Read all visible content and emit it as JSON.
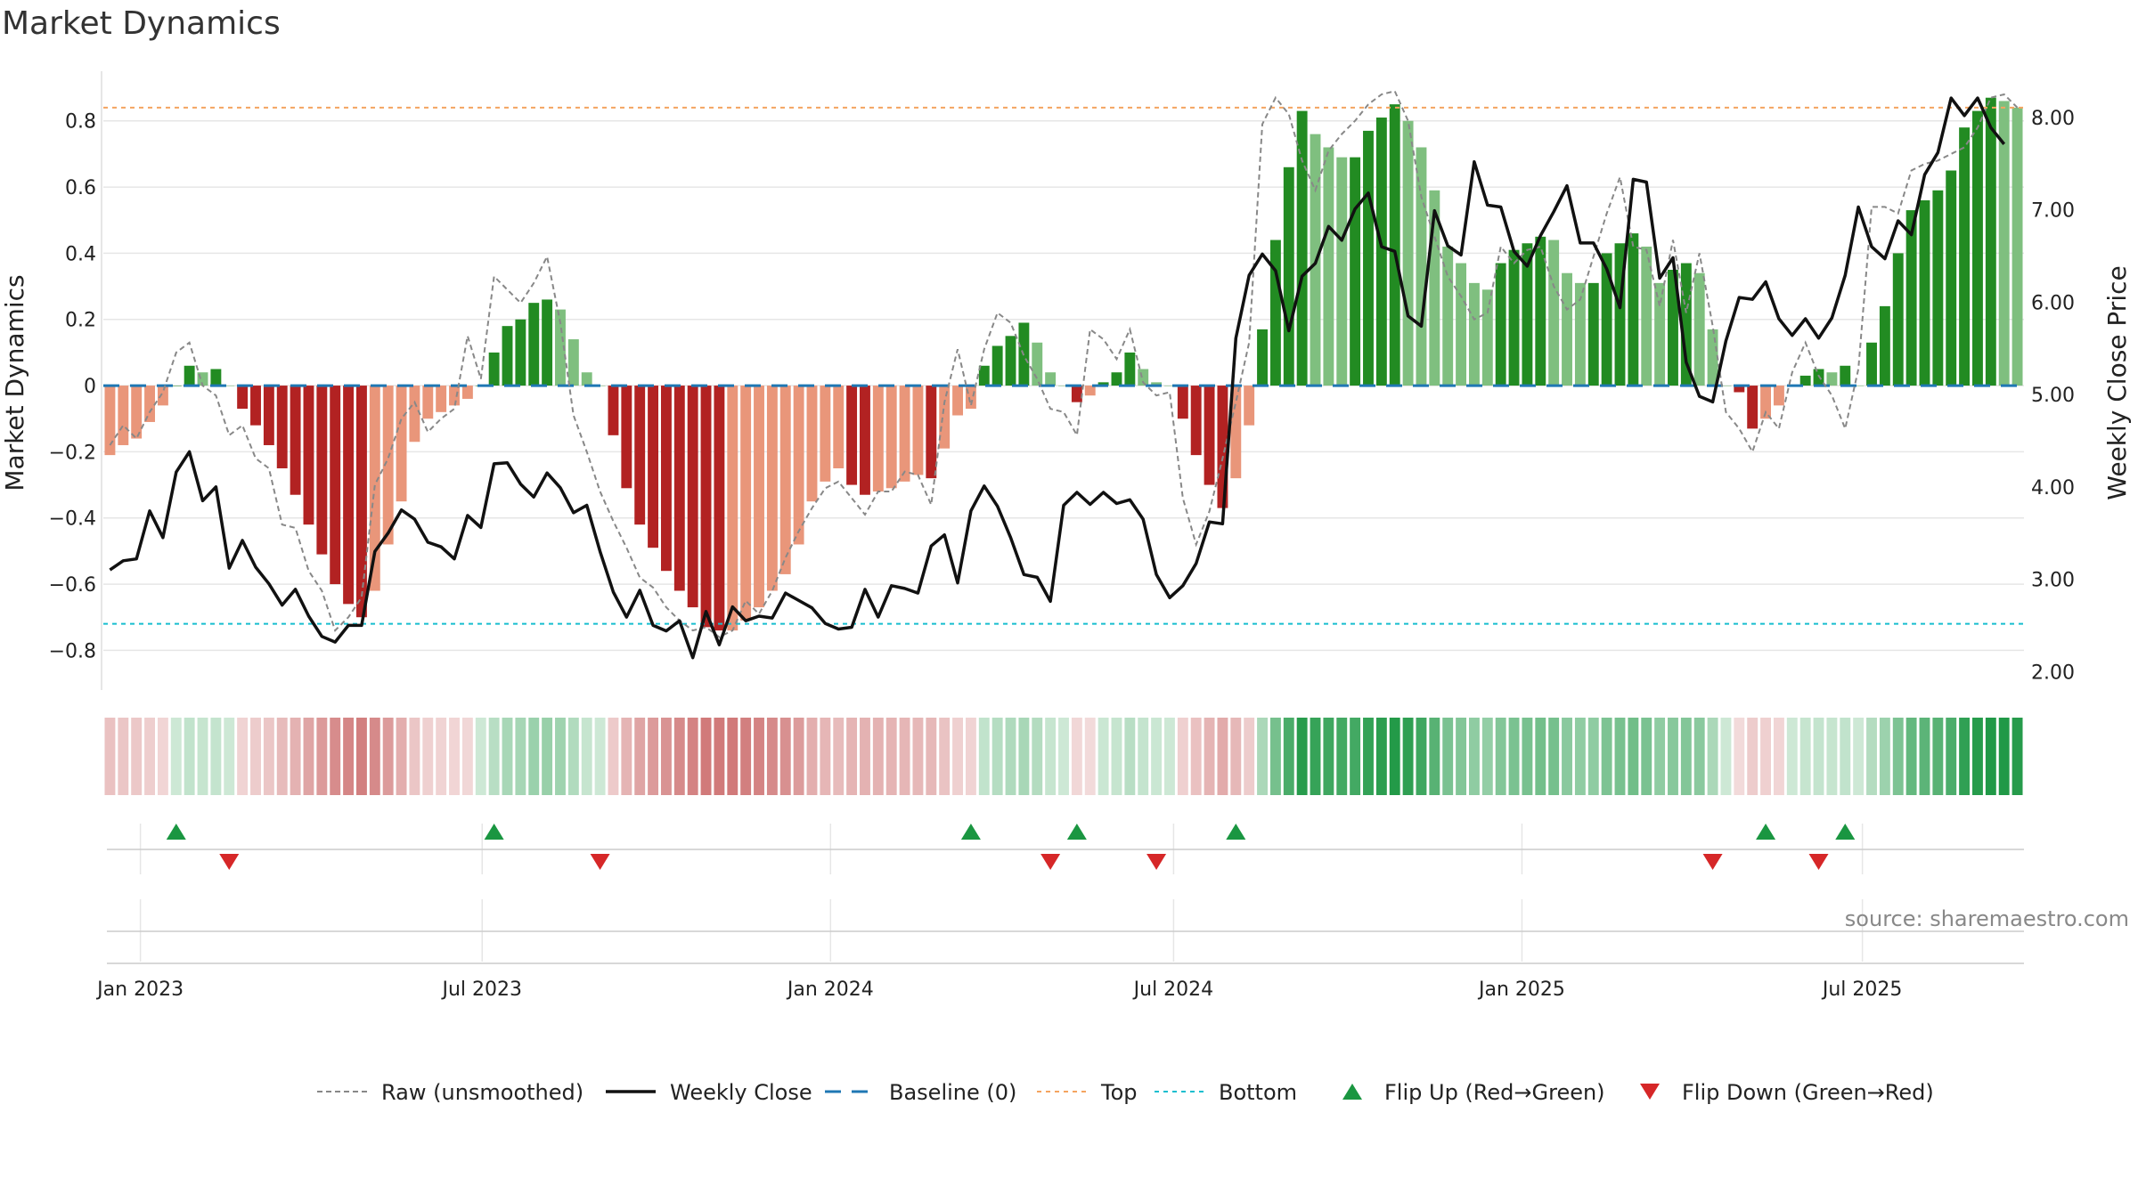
{
  "chart_data": {
    "type": "bar",
    "title": "Market Dynamics",
    "ylabel": "Market Dynamics",
    "y2label": "Weekly Close Price",
    "ylim": [
      -0.92,
      0.95
    ],
    "y2lim": [
      1.8,
      8.5
    ],
    "yticks": [
      -0.8,
      -0.6,
      -0.4,
      -0.2,
      0,
      0.2,
      0.4,
      0.6,
      0.8
    ],
    "ytick_labels": [
      "−0.8",
      "−0.6",
      "−0.4",
      "−0.2",
      "0",
      "0.2",
      "0.4",
      "0.6",
      "0.8"
    ],
    "y2ticks": [
      2,
      3,
      4,
      5,
      6,
      7,
      8
    ],
    "y2tick_labels": [
      "2.00",
      "3.00",
      "4.00",
      "5.00",
      "6.00",
      "7.00",
      "8.00"
    ],
    "xtick_labels": [
      "Jan 2023",
      "Jul 2023",
      "Jan 2024",
      "Jul 2024",
      "Jan 2025",
      "Jul 2025"
    ],
    "xtick_weeks": [
      2.3,
      28.1,
      54.4,
      80.3,
      106.6,
      132.3
    ],
    "top_line": 0.84,
    "bottom_line": -0.72,
    "baseline": 0,
    "dynamics": [
      -0.21,
      -0.18,
      -0.16,
      -0.11,
      -0.06,
      0.0,
      0.06,
      0.04,
      0.05,
      0.0,
      -0.07,
      -0.12,
      -0.18,
      -0.25,
      -0.33,
      -0.42,
      -0.51,
      -0.6,
      -0.66,
      -0.7,
      -0.62,
      -0.48,
      -0.35,
      -0.17,
      -0.1,
      -0.08,
      -0.06,
      -0.04,
      0.0,
      0.1,
      0.18,
      0.2,
      0.25,
      0.26,
      0.23,
      0.14,
      0.04,
      0.0,
      -0.15,
      -0.31,
      -0.42,
      -0.49,
      -0.56,
      -0.62,
      -0.67,
      -0.73,
      -0.74,
      -0.74,
      -0.71,
      -0.67,
      -0.62,
      -0.57,
      -0.48,
      -0.35,
      -0.29,
      -0.25,
      -0.3,
      -0.33,
      -0.32,
      -0.31,
      -0.29,
      -0.27,
      -0.28,
      -0.19,
      -0.09,
      -0.07,
      0.06,
      0.12,
      0.15,
      0.19,
      0.13,
      0.04,
      0.0,
      -0.05,
      -0.03,
      0.01,
      0.04,
      0.1,
      0.05,
      0.01,
      0.0,
      -0.1,
      -0.21,
      -0.3,
      -0.37,
      -0.28,
      -0.12,
      0.17,
      0.44,
      0.66,
      0.83,
      0.76,
      0.72,
      0.69,
      0.69,
      0.77,
      0.81,
      0.85,
      0.8,
      0.72,
      0.59,
      0.42,
      0.37,
      0.31,
      0.29,
      0.37,
      0.41,
      0.43,
      0.45,
      0.44,
      0.34,
      0.31,
      0.31,
      0.4,
      0.43,
      0.46,
      0.42,
      0.31,
      0.35,
      0.37,
      0.34,
      0.17,
      0.0,
      -0.02,
      -0.13,
      -0.1,
      -0.06,
      0.0,
      0.03,
      0.05,
      0.04,
      0.06,
      0.0,
      0.13,
      0.24,
      0.4,
      0.53,
      0.56,
      0.59,
      0.65,
      0.78,
      0.83,
      0.87,
      0.86,
      0.84
    ],
    "raw": [
      -0.18,
      -0.12,
      -0.16,
      -0.08,
      -0.02,
      0.1,
      0.13,
      0.0,
      -0.03,
      -0.15,
      -0.12,
      -0.22,
      -0.25,
      -0.42,
      -0.43,
      -0.56,
      -0.62,
      -0.74,
      -0.7,
      -0.64,
      -0.3,
      -0.22,
      -0.1,
      -0.05,
      -0.14,
      -0.1,
      -0.07,
      0.15,
      0.02,
      0.33,
      0.29,
      0.25,
      0.31,
      0.39,
      0.19,
      -0.09,
      -0.2,
      -0.32,
      -0.41,
      -0.49,
      -0.58,
      -0.61,
      -0.67,
      -0.71,
      -0.74,
      -0.73,
      -0.76,
      -0.74,
      -0.65,
      -0.69,
      -0.62,
      -0.52,
      -0.44,
      -0.37,
      -0.31,
      -0.29,
      -0.34,
      -0.39,
      -0.32,
      -0.32,
      -0.26,
      -0.27,
      -0.36,
      -0.05,
      0.11,
      -0.06,
      0.11,
      0.22,
      0.19,
      0.09,
      0.02,
      -0.07,
      -0.08,
      -0.15,
      0.17,
      0.14,
      0.08,
      0.17,
      0.01,
      -0.03,
      -0.02,
      -0.34,
      -0.48,
      -0.38,
      -0.22,
      -0.05,
      0.13,
      0.79,
      0.87,
      0.82,
      0.68,
      0.59,
      0.71,
      0.76,
      0.8,
      0.85,
      0.88,
      0.89,
      0.8,
      0.57,
      0.45,
      0.33,
      0.27,
      0.2,
      0.22,
      0.42,
      0.37,
      0.41,
      0.42,
      0.3,
      0.23,
      0.26,
      0.39,
      0.52,
      0.63,
      0.42,
      0.41,
      0.24,
      0.44,
      0.22,
      0.4,
      0.18,
      -0.08,
      -0.13,
      -0.2,
      -0.08,
      -0.13,
      0.04,
      0.13,
      0.03,
      -0.03,
      -0.13,
      0.05,
      0.54,
      0.54,
      0.52,
      0.65,
      0.67,
      0.68,
      0.7,
      0.72,
      0.78,
      0.87,
      0.88,
      0.84
    ],
    "weekly_close": [
      3.1,
      3.2,
      3.22,
      3.74,
      3.45,
      4.16,
      4.38,
      3.85,
      4.0,
      3.12,
      3.42,
      3.13,
      2.95,
      2.72,
      2.89,
      2.6,
      2.38,
      2.32,
      2.5,
      2.5,
      3.3,
      3.5,
      3.75,
      3.65,
      3.4,
      3.35,
      3.22,
      3.69,
      3.56,
      4.25,
      4.26,
      4.03,
      3.89,
      4.15,
      3.99,
      3.72,
      3.8,
      3.3,
      2.86,
      2.59,
      2.88,
      2.5,
      2.44,
      2.55,
      2.15,
      2.65,
      2.29,
      2.7,
      2.55,
      2.6,
      2.58,
      2.85,
      2.77,
      2.69,
      2.52,
      2.46,
      2.48,
      2.89,
      2.59,
      2.93,
      2.9,
      2.85,
      3.36,
      3.48,
      2.96,
      3.74,
      4.01,
      3.79,
      3.45,
      3.05,
      3.02,
      2.76,
      3.8,
      3.94,
      3.81,
      3.94,
      3.82,
      3.86,
      3.65,
      3.05,
      2.8,
      2.93,
      3.17,
      3.62,
      3.6,
      5.61,
      6.29,
      6.52,
      6.34,
      5.69,
      6.28,
      6.42,
      6.82,
      6.67,
      7.01,
      7.18,
      6.6,
      6.55,
      5.85,
      5.74,
      6.99,
      6.61,
      6.51,
      7.52,
      7.05,
      7.03,
      6.55,
      6.39,
      6.72,
      6.98,
      7.26,
      6.64,
      6.64,
      6.36,
      5.94,
      7.33,
      7.3,
      6.26,
      6.48,
      5.35,
      4.98,
      4.92,
      5.58,
      6.05,
      6.03,
      6.22,
      5.82,
      5.64,
      5.82,
      5.61,
      5.83,
      6.29,
      7.03,
      6.6,
      6.47,
      6.88,
      6.73,
      7.38,
      7.62,
      8.21,
      8.02,
      8.21,
      7.89,
      7.71
    ],
    "flip_up": [
      "Feb 2023",
      "Jul 2023",
      "Apr 2024",
      "Jun 2024",
      "Aug 2024",
      "Jun 2025",
      "Jul 2025"
    ],
    "flip_up_weeks": [
      5,
      29,
      65,
      73,
      85,
      125,
      131
    ],
    "flip_down": [
      "Mar 2023",
      "Sep 2023",
      "May 2024",
      "Jul 2024",
      "May 2025",
      "Jun 2025"
    ],
    "flip_down_weeks": [
      9,
      37,
      71,
      79,
      121,
      129
    ],
    "legend": [
      "Raw (unsmoothed)",
      "Weekly Close",
      "Baseline (0)",
      "Top",
      "Bottom",
      "Flip Up (Red→Green)",
      "Flip Down (Green→Red)"
    ],
    "legend_position": "bottom",
    "source_text": "source: sharemaestro.com",
    "grid": true,
    "colors": {
      "strong_green": "#228b22",
      "light_green": "#7fbf7f",
      "strong_red": "#b22222",
      "light_red": "#e9967a",
      "raw_line": "#888888",
      "close_line": "#111111",
      "baseline": "#1f77b4",
      "top_line": "#f4a460",
      "bottom_line": "#17becf",
      "flip_up": "#1a9641",
      "flip_down": "#d62728"
    }
  }
}
